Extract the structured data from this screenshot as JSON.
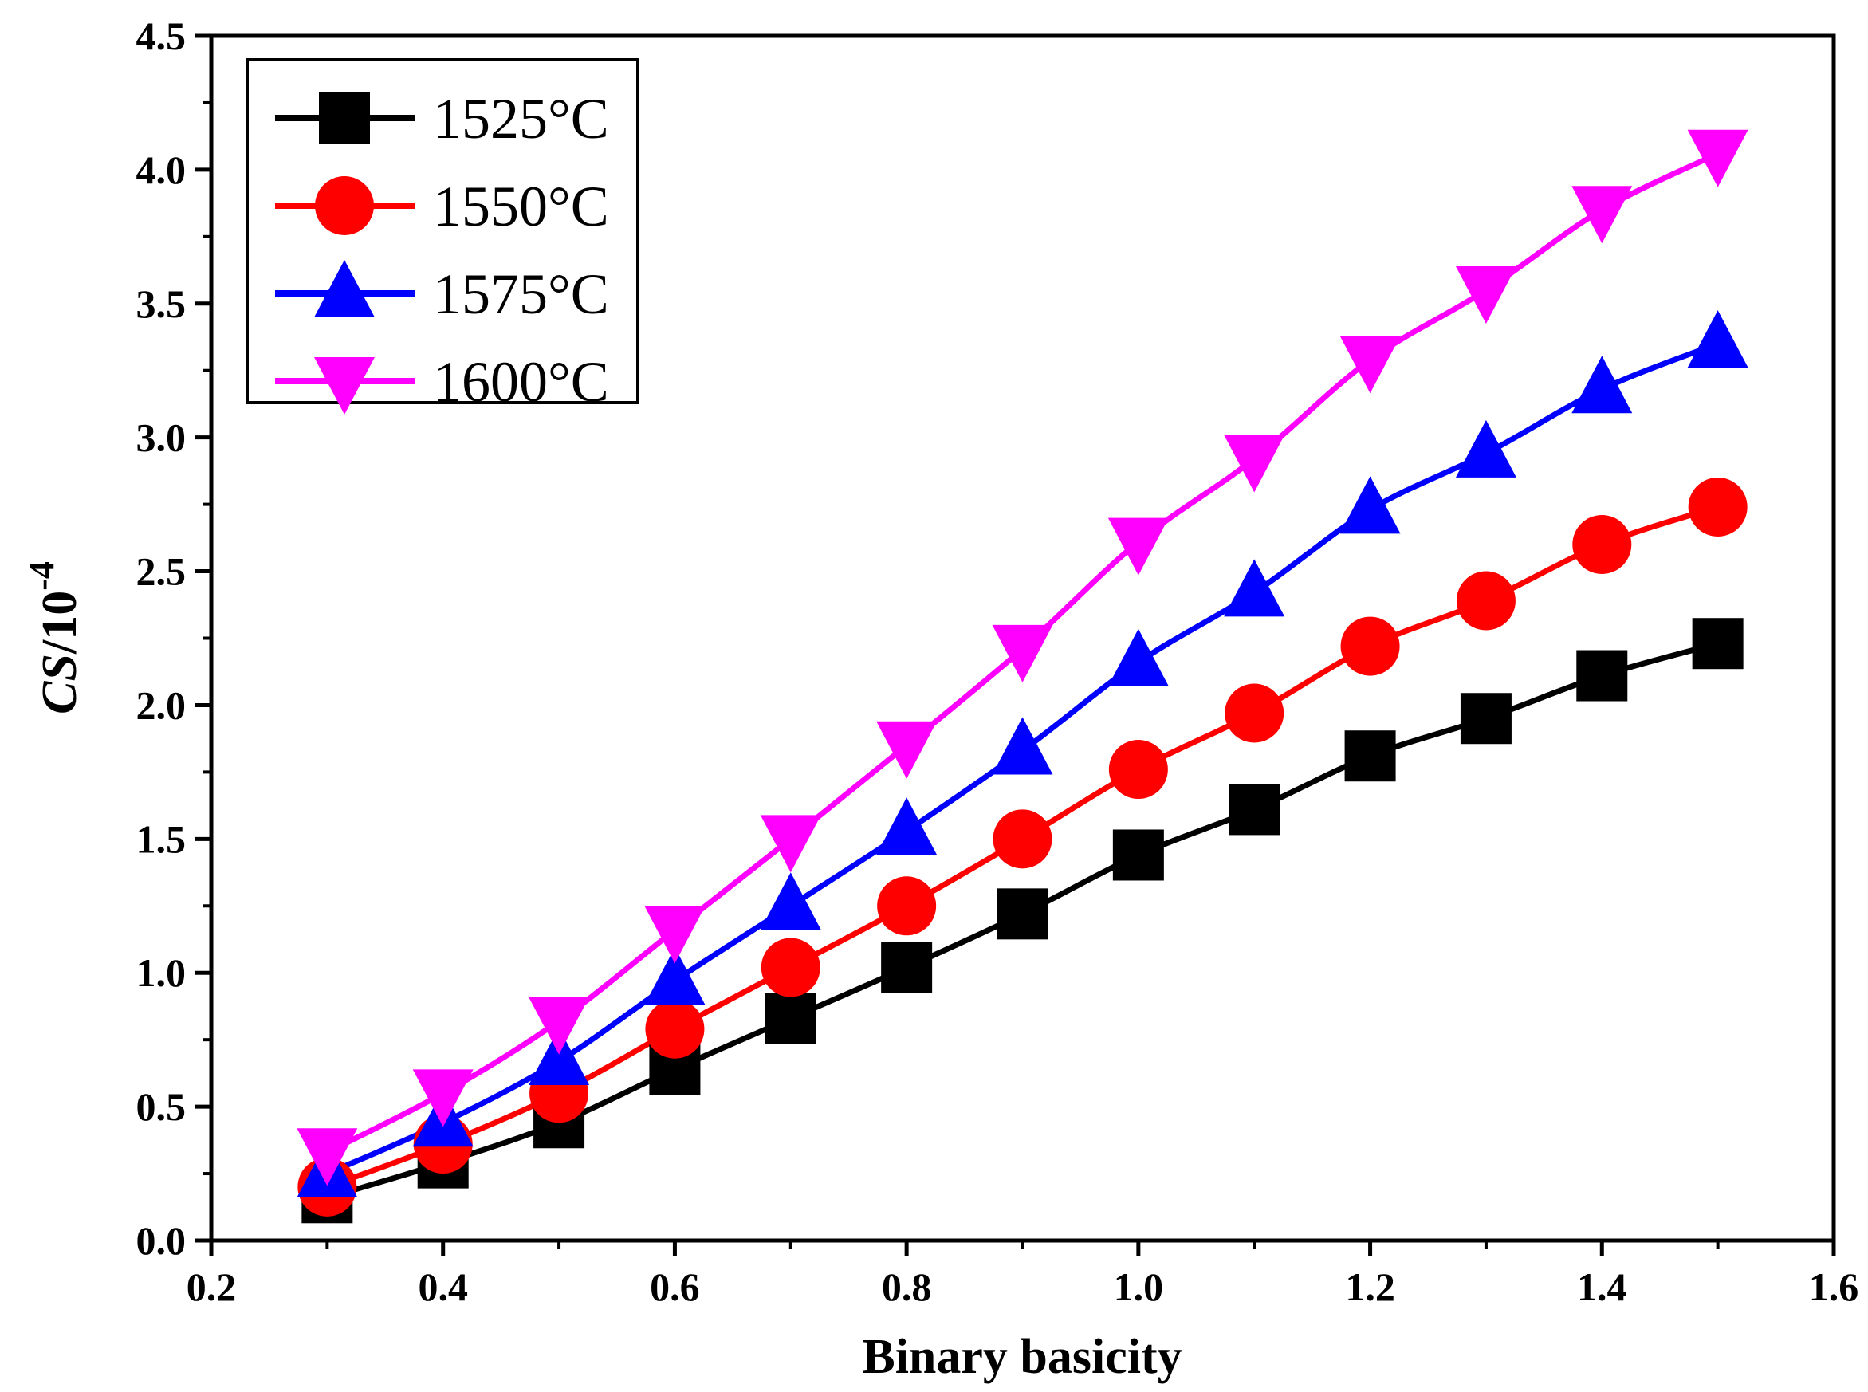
{
  "chart_data": {
    "type": "line",
    "title": "",
    "xlabel": "Binary basicity",
    "ylabel_parts": {
      "main": "CS",
      "sep": "/10",
      "exp": "-4"
    },
    "xlim": [
      0.2,
      1.6
    ],
    "ylim": [
      0.0,
      4.5
    ],
    "xticks": [
      "0.2",
      "0.4",
      "0.6",
      "0.8",
      "1.0",
      "1.2",
      "1.4",
      "1.6"
    ],
    "yticks": [
      "0.0",
      "0.5",
      "1.0",
      "1.5",
      "2.0",
      "2.5",
      "3.0",
      "3.5",
      "4.0",
      "4.5"
    ],
    "grid": false,
    "legend_position": "top-left",
    "x": [
      0.3,
      0.4,
      0.5,
      0.6,
      0.7,
      0.8,
      0.9,
      1.0,
      1.1,
      1.2,
      1.3,
      1.4,
      1.5
    ],
    "series": [
      {
        "name": "1525°C",
        "color": "#000000",
        "marker": "square",
        "values": [
          0.16,
          0.29,
          0.44,
          0.64,
          0.83,
          1.02,
          1.22,
          1.44,
          1.61,
          1.81,
          1.95,
          2.11,
          2.23
        ]
      },
      {
        "name": "1550°C",
        "color": "#ff0000",
        "marker": "circle",
        "values": [
          0.2,
          0.36,
          0.55,
          0.79,
          1.02,
          1.25,
          1.5,
          1.76,
          1.97,
          2.22,
          2.39,
          2.6,
          2.74
        ]
      },
      {
        "name": "1575°C",
        "color": "#0000ff",
        "marker": "triangle-up",
        "values": [
          0.25,
          0.44,
          0.67,
          0.97,
          1.25,
          1.53,
          1.83,
          2.16,
          2.42,
          2.73,
          2.94,
          3.18,
          3.35
        ]
      },
      {
        "name": "1600°C",
        "color": "#ff00ff",
        "marker": "triangle-down",
        "values": [
          0.33,
          0.55,
          0.82,
          1.16,
          1.5,
          1.85,
          2.21,
          2.61,
          2.92,
          3.29,
          3.55,
          3.85,
          4.06
        ]
      }
    ]
  }
}
